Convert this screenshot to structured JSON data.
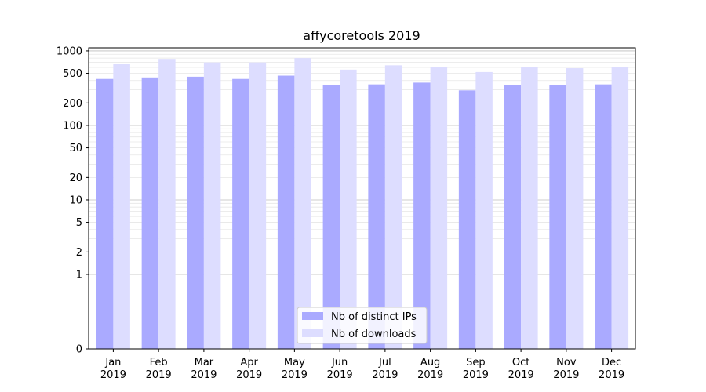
{
  "chart_data": {
    "type": "bar",
    "title": "affycoretools 2019",
    "xlabel": "",
    "ylabel": "",
    "yscale": "symlog",
    "ylim": [
      0,
      1100
    ],
    "yticks": [
      0,
      1,
      2,
      5,
      10,
      20,
      50,
      100,
      200,
      500,
      1000
    ],
    "grid": true,
    "legend_position": "bottom-center",
    "categories": [
      [
        "Jan",
        "2019"
      ],
      [
        "Feb",
        "2019"
      ],
      [
        "Mar",
        "2019"
      ],
      [
        "Apr",
        "2019"
      ],
      [
        "May",
        "2019"
      ],
      [
        "Jun",
        "2019"
      ],
      [
        "Jul",
        "2019"
      ],
      [
        "Aug",
        "2019"
      ],
      [
        "Sep",
        "2019"
      ],
      [
        "Oct",
        "2019"
      ],
      [
        "Nov",
        "2019"
      ],
      [
        "Dec",
        "2019"
      ]
    ],
    "series": [
      {
        "name": "Nb of distinct IPs",
        "color": "#aaaaff",
        "values": [
          420,
          440,
          450,
          420,
          465,
          350,
          355,
          375,
          295,
          350,
          345,
          355
        ]
      },
      {
        "name": "Nb of downloads",
        "color": "#ddddff",
        "values": [
          670,
          780,
          700,
          700,
          800,
          560,
          640,
          600,
          520,
          610,
          585,
          600
        ]
      }
    ]
  }
}
